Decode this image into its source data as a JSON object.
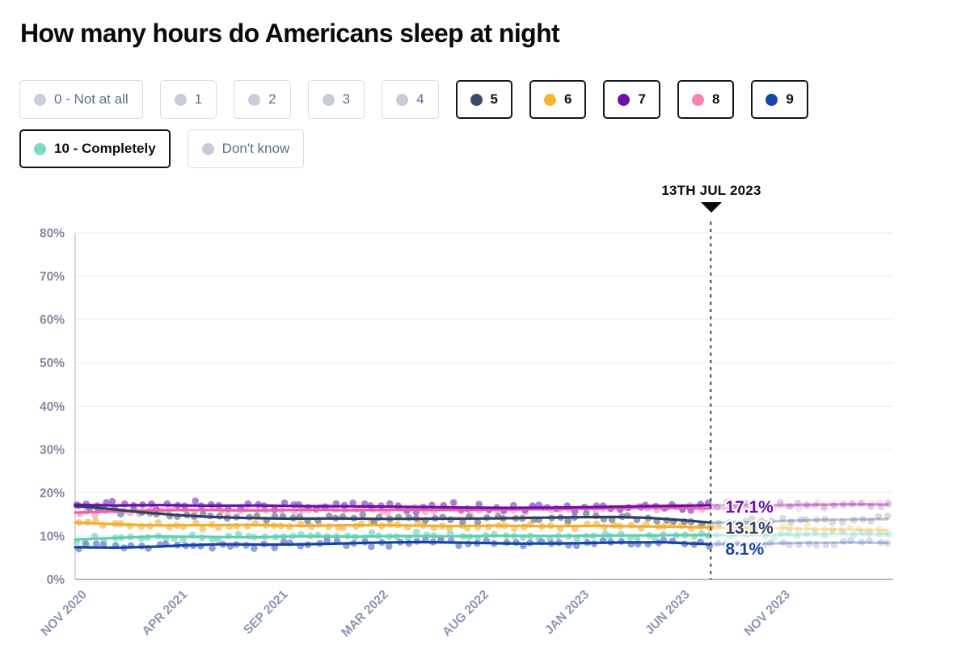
{
  "title": "How many hours do Americans sleep at night",
  "legend": {
    "inactive_dot_color": "#c6ccd9",
    "items": [
      {
        "label": "0 - Not at all",
        "active": false
      },
      {
        "label": "1",
        "active": false
      },
      {
        "label": "2",
        "active": false
      },
      {
        "label": "3",
        "active": false
      },
      {
        "label": "4",
        "active": false
      },
      {
        "label": "5",
        "active": true,
        "color": "#3b4a66"
      },
      {
        "label": "6",
        "active": true,
        "color": "#f8b62e"
      },
      {
        "label": "7",
        "active": true,
        "color": "#6d10ac"
      },
      {
        "label": "8",
        "active": true,
        "color": "#f783b3"
      },
      {
        "label": "9",
        "active": true,
        "color": "#1746ab"
      },
      {
        "label": "10 - Completely",
        "active": true,
        "color": "#7ed9c2"
      },
      {
        "label": "Don't know",
        "active": false
      }
    ]
  },
  "chart_data": {
    "type": "line",
    "title": "How many hours do Americans sleep at night",
    "x_tick_labels": [
      "NOV 2020",
      "APR 2021",
      "SEP 2021",
      "MAR 2022",
      "AUG 2022",
      "JAN 2023",
      "JUN 2023",
      "NOV 2023"
    ],
    "y_tick_labels": [
      "0%",
      "10%",
      "20%",
      "30%",
      "40%",
      "50%",
      "60%",
      "70%",
      "80%"
    ],
    "ylim": [
      0,
      80
    ],
    "grid": "horizontal",
    "legend_position": "top",
    "annotation": {
      "label": "13TH JUL 2023",
      "x_frac": 0.777
    },
    "series": [
      {
        "name": "10 - Completely",
        "color": "#5ecfb4",
        "scatter_color": "#86dcc6",
        "sigma": 1.1,
        "seed": 60,
        "points": [
          [
            0,
            9.2
          ],
          [
            0.05,
            9.55
          ],
          [
            0.1,
            9.9
          ],
          [
            0.16,
            9.8
          ],
          [
            0.22,
            9.7
          ],
          [
            0.28,
            9.95
          ],
          [
            0.34,
            9.85
          ],
          [
            0.4,
            10.0
          ],
          [
            0.46,
            9.95
          ],
          [
            0.52,
            10.05
          ],
          [
            0.58,
            10.0
          ],
          [
            0.64,
            10.1
          ],
          [
            0.7,
            10.15
          ],
          [
            0.74,
            10.2
          ],
          [
            0.777,
            10.2
          ],
          [
            0.84,
            10.3
          ],
          [
            0.9,
            10.45
          ],
          [
            0.95,
            10.5
          ],
          [
            1,
            10.45
          ]
        ]
      },
      {
        "name": "9",
        "color": "#1443a8",
        "scatter_color": "#7688cc",
        "sigma": 1.15,
        "seed": 51,
        "points": [
          [
            0,
            7.4
          ],
          [
            0.05,
            7.3
          ],
          [
            0.1,
            7.55
          ],
          [
            0.14,
            7.9
          ],
          [
            0.18,
            8.1
          ],
          [
            0.24,
            8.0
          ],
          [
            0.3,
            8.15
          ],
          [
            0.36,
            8.45
          ],
          [
            0.42,
            8.6
          ],
          [
            0.48,
            8.45
          ],
          [
            0.54,
            8.25
          ],
          [
            0.6,
            8.3
          ],
          [
            0.66,
            8.5
          ],
          [
            0.72,
            8.55
          ],
          [
            0.777,
            8.1
          ],
          [
            0.84,
            8.25
          ],
          [
            0.9,
            8.45
          ],
          [
            0.95,
            8.5
          ],
          [
            1,
            8.4
          ]
        ]
      },
      {
        "name": "6",
        "color": "#f2ae2e",
        "scatter_color": "#f4c25e",
        "sigma": 1.1,
        "seed": 42,
        "points": [
          [
            0,
            13.1
          ],
          [
            0.05,
            12.7
          ],
          [
            0.1,
            12.45
          ],
          [
            0.16,
            12.5
          ],
          [
            0.22,
            12.55
          ],
          [
            0.28,
            12.35
          ],
          [
            0.34,
            12.5
          ],
          [
            0.4,
            12.45
          ],
          [
            0.46,
            12.3
          ],
          [
            0.52,
            12.4
          ],
          [
            0.58,
            12.25
          ],
          [
            0.64,
            12.35
          ],
          [
            0.7,
            12.2
          ],
          [
            0.74,
            12.1
          ],
          [
            0.777,
            12.0
          ],
          [
            0.84,
            11.85
          ],
          [
            0.9,
            11.6
          ],
          [
            0.95,
            11.45
          ],
          [
            1,
            11.4
          ]
        ]
      },
      {
        "name": "8",
        "color": "#ef5fa7",
        "scatter_color": "#f9a8cb",
        "sigma": 1.25,
        "seed": 33,
        "points": [
          [
            0,
            15.4
          ],
          [
            0.05,
            15.7
          ],
          [
            0.1,
            15.95
          ],
          [
            0.16,
            16.0
          ],
          [
            0.22,
            15.9
          ],
          [
            0.28,
            16.05
          ],
          [
            0.34,
            15.95
          ],
          [
            0.4,
            16.05
          ],
          [
            0.46,
            16.0
          ],
          [
            0.52,
            16.1
          ],
          [
            0.58,
            16.2
          ],
          [
            0.64,
            16.35
          ],
          [
            0.7,
            16.5
          ],
          [
            0.74,
            16.45
          ],
          [
            0.777,
            16.35
          ],
          [
            0.84,
            16.7
          ],
          [
            0.9,
            17.1
          ],
          [
            0.95,
            17.35
          ],
          [
            1,
            17.4
          ]
        ]
      },
      {
        "name": "5",
        "color": "#333f5c",
        "scatter_color": "#7d87a3",
        "sigma": 1.2,
        "seed": 24,
        "points": [
          [
            0,
            16.9
          ],
          [
            0.04,
            16.3
          ],
          [
            0.08,
            15.5
          ],
          [
            0.12,
            14.9
          ],
          [
            0.16,
            14.45
          ],
          [
            0.2,
            14.2
          ],
          [
            0.26,
            14.0
          ],
          [
            0.32,
            14.05
          ],
          [
            0.38,
            13.95
          ],
          [
            0.44,
            14.0
          ],
          [
            0.5,
            14.05
          ],
          [
            0.56,
            14.2
          ],
          [
            0.62,
            14.35
          ],
          [
            0.66,
            14.4
          ],
          [
            0.7,
            14.2
          ],
          [
            0.74,
            13.7
          ],
          [
            0.777,
            13.1
          ],
          [
            0.82,
            13.15
          ],
          [
            0.87,
            13.5
          ],
          [
            0.93,
            13.8
          ],
          [
            1,
            13.9
          ]
        ]
      },
      {
        "name": "7",
        "color": "#6a0fae",
        "scatter_color": "#9a5fce",
        "sigma": 1.4,
        "seed": 15,
        "points": [
          [
            0,
            17.2
          ],
          [
            0.05,
            17.05
          ],
          [
            0.1,
            17.15
          ],
          [
            0.16,
            17.0
          ],
          [
            0.22,
            17.05
          ],
          [
            0.28,
            16.9
          ],
          [
            0.34,
            16.85
          ],
          [
            0.4,
            16.75
          ],
          [
            0.46,
            16.6
          ],
          [
            0.52,
            16.5
          ],
          [
            0.58,
            16.55
          ],
          [
            0.64,
            16.7
          ],
          [
            0.7,
            16.9
          ],
          [
            0.74,
            17.0
          ],
          [
            0.777,
            17.1
          ],
          [
            0.84,
            17.15
          ],
          [
            0.9,
            17.25
          ],
          [
            0.95,
            17.3
          ],
          [
            1,
            17.2
          ]
        ]
      }
    ],
    "value_labels": [
      {
        "text": "17.1%",
        "series": "7",
        "color": "#6d10ac",
        "value": 17.1
      },
      {
        "text": "13.1%",
        "series": "5",
        "color": "#333f5e",
        "value": 13.1
      },
      {
        "text": "8.1%",
        "series": "9",
        "color": "#1443a8",
        "value": 8.1
      }
    ]
  }
}
